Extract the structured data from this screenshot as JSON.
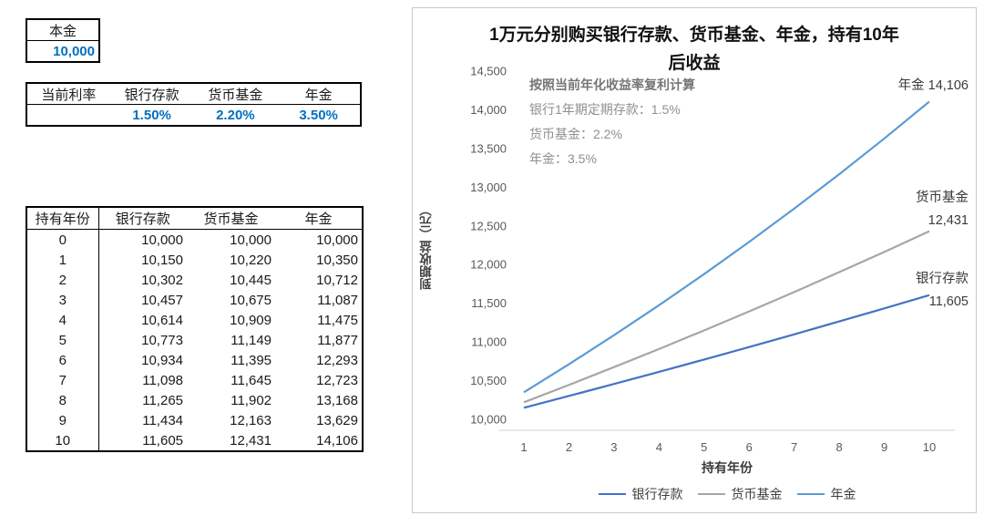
{
  "colors": {
    "highlight_value": "#0070C0",
    "series_bank": "#4472C4",
    "series_fund": "#A6A6A6",
    "series_annuity": "#5B9BD5"
  },
  "left_panel": {
    "principal_table": {
      "header": "本金",
      "value": "10,000"
    },
    "rate_table": {
      "headers": [
        "当前利率",
        "银行存款",
        "货币基金",
        "年金"
      ],
      "values": [
        "",
        "1.50%",
        "2.20%",
        "3.50%"
      ]
    },
    "growth_table": {
      "headers": [
        "持有年份",
        "银行存款",
        "货币基金",
        "年金"
      ],
      "rows": [
        [
          "0",
          "10,000",
          "10,000",
          "10,000"
        ],
        [
          "1",
          "10,150",
          "10,220",
          "10,350"
        ],
        [
          "2",
          "10,302",
          "10,445",
          "10,712"
        ],
        [
          "3",
          "10,457",
          "10,675",
          "11,087"
        ],
        [
          "4",
          "10,614",
          "10,909",
          "11,475"
        ],
        [
          "5",
          "10,773",
          "11,149",
          "11,877"
        ],
        [
          "6",
          "10,934",
          "11,395",
          "12,293"
        ],
        [
          "7",
          "11,098",
          "11,645",
          "12,723"
        ],
        [
          "8",
          "11,265",
          "11,902",
          "13,168"
        ],
        [
          "9",
          "11,434",
          "12,163",
          "13,629"
        ],
        [
          "10",
          "11,605",
          "12,431",
          "14,106"
        ]
      ]
    }
  },
  "chart_data": {
    "type": "line",
    "title": "1万元分别购买银行存款、货币基金、年金，持有10年后收益",
    "title_lines": [
      "1万元分别购买银行存款、货币基金、年金，持有10年",
      "后收益"
    ],
    "xlabel": "持有年份",
    "ylabel": "到期收益（元）",
    "x": [
      1,
      2,
      3,
      4,
      5,
      6,
      7,
      8,
      9,
      10
    ],
    "ylim": [
      10000,
      14500
    ],
    "y_tick_step": 500,
    "grid": false,
    "legend_position": "bottom",
    "annotations": [
      "按照当前年化收益率复利计算",
      "银行1年期定期存款：1.5%",
      "货币基金：2.2%",
      "年金：3.5%"
    ],
    "series": [
      {
        "name": "银行存款",
        "color": "#4472C4",
        "values": [
          10150,
          10302,
          10457,
          10614,
          10773,
          10934,
          11098,
          11265,
          11434,
          11605
        ],
        "end_label": [
          "银行存款",
          "11,605"
        ]
      },
      {
        "name": "货币基金",
        "color": "#A6A6A6",
        "values": [
          10220,
          10445,
          10675,
          10909,
          11149,
          11395,
          11645,
          11902,
          12163,
          12431
        ],
        "end_label": [
          "货币基金",
          "12,431"
        ]
      },
      {
        "name": "年金",
        "color": "#5B9BD5",
        "values": [
          10350,
          10712,
          11087,
          11475,
          11877,
          12293,
          12723,
          13168,
          13629,
          14106
        ],
        "end_label": [
          "年金 14,106"
        ]
      }
    ]
  }
}
